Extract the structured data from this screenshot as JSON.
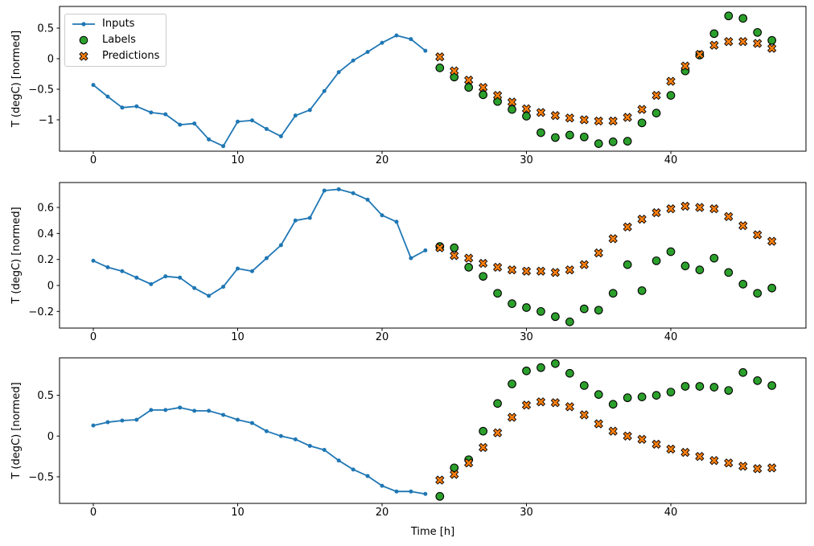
{
  "figure": {
    "xlabel": "Time [h]",
    "ylabel": "T (degC) [normed]"
  },
  "colors": {
    "inputs": "#1f77b4",
    "labels": "#2ca02c",
    "predictions": "#ff7f0e",
    "marker_edge": "#000000",
    "axes_edge": "#000000",
    "legend_border": "#cccccc",
    "background": "#ffffff"
  },
  "legend": {
    "position": "upper-left",
    "items": [
      {
        "label": "Inputs",
        "marker": "line-dot-icon"
      },
      {
        "label": "Labels",
        "marker": "circle-icon"
      },
      {
        "label": "Predictions",
        "marker": "x-icon"
      }
    ]
  },
  "chart_data": [
    {
      "type": "line",
      "title": "",
      "xlabel": "",
      "ylabel": "T (degC) [normed]",
      "xlim": [
        -2.34,
        49.36
      ],
      "ylim": [
        -1.513,
        0.855
      ],
      "xticks": [
        0,
        10,
        20,
        30,
        40
      ],
      "yticks": [
        0.5,
        0.0,
        -0.5,
        -1.0
      ],
      "grid": false,
      "series": [
        {
          "name": "Inputs",
          "kind": "line",
          "marker": "dot",
          "x": [
            0,
            1,
            2,
            3,
            4,
            5,
            6,
            7,
            8,
            9,
            10,
            11,
            12,
            13,
            14,
            15,
            16,
            17,
            18,
            19,
            20,
            21,
            22,
            23
          ],
          "values": [
            -0.43,
            -0.62,
            -0.8,
            -0.78,
            -0.88,
            -0.91,
            -1.08,
            -1.06,
            -1.32,
            -1.43,
            -1.03,
            -1.01,
            -1.15,
            -1.27,
            -0.93,
            -0.84,
            -0.53,
            -0.22,
            -0.03,
            0.11,
            0.26,
            0.38,
            0.32,
            0.13
          ]
        },
        {
          "name": "Labels",
          "kind": "scatter",
          "marker": "circle",
          "x": [
            24,
            25,
            26,
            27,
            28,
            29,
            30,
            31,
            32,
            33,
            34,
            35,
            36,
            37,
            38,
            39,
            40,
            41,
            42,
            43,
            44,
            45,
            46,
            47
          ],
          "values": [
            -0.15,
            -0.3,
            -0.47,
            -0.59,
            -0.7,
            -0.83,
            -0.94,
            -1.21,
            -1.29,
            -1.25,
            -1.28,
            -1.39,
            -1.36,
            -1.35,
            -1.05,
            -0.89,
            -0.6,
            -0.2,
            0.06,
            0.41,
            0.7,
            0.66,
            0.43,
            0.3
          ]
        },
        {
          "name": "Predictions",
          "kind": "scatter",
          "marker": "X",
          "x": [
            24,
            25,
            26,
            27,
            28,
            29,
            30,
            31,
            32,
            33,
            34,
            35,
            36,
            37,
            38,
            39,
            40,
            41,
            42,
            43,
            44,
            45,
            46,
            47
          ],
          "values": [
            0.03,
            -0.2,
            -0.35,
            -0.47,
            -0.6,
            -0.71,
            -0.82,
            -0.88,
            -0.93,
            -0.97,
            -1.0,
            -1.02,
            -1.02,
            -0.96,
            -0.83,
            -0.6,
            -0.37,
            -0.12,
            0.07,
            0.22,
            0.28,
            0.28,
            0.25,
            0.17
          ]
        }
      ]
    },
    {
      "type": "line",
      "title": "",
      "xlabel": "",
      "ylabel": "T (degC) [normed]",
      "xlim": [
        -2.34,
        49.36
      ],
      "ylim": [
        -0.328,
        0.792
      ],
      "xticks": [
        0,
        10,
        20,
        30,
        40
      ],
      "yticks": [
        0.6,
        0.4,
        0.2,
        0.0,
        -0.2
      ],
      "grid": false,
      "series": [
        {
          "name": "Inputs",
          "kind": "line",
          "marker": "dot",
          "x": [
            0,
            1,
            2,
            3,
            4,
            5,
            6,
            7,
            8,
            9,
            10,
            11,
            12,
            13,
            14,
            15,
            16,
            17,
            18,
            19,
            20,
            21,
            22,
            23
          ],
          "values": [
            0.19,
            0.14,
            0.11,
            0.06,
            0.01,
            0.07,
            0.06,
            -0.02,
            -0.08,
            -0.01,
            0.13,
            0.11,
            0.21,
            0.31,
            0.5,
            0.52,
            0.73,
            0.74,
            0.71,
            0.66,
            0.54,
            0.49,
            0.21,
            0.27
          ]
        },
        {
          "name": "Labels",
          "kind": "scatter",
          "marker": "circle",
          "x": [
            24,
            25,
            26,
            27,
            28,
            29,
            30,
            31,
            32,
            33,
            34,
            35,
            36,
            37,
            38,
            39,
            40,
            41,
            42,
            43,
            44,
            45,
            46,
            47
          ],
          "values": [
            0.3,
            0.29,
            0.14,
            0.07,
            -0.06,
            -0.14,
            -0.17,
            -0.2,
            -0.24,
            -0.28,
            -0.18,
            -0.19,
            -0.06,
            0.16,
            -0.04,
            0.19,
            0.26,
            0.15,
            0.12,
            0.21,
            0.1,
            0.01,
            -0.06,
            -0.02
          ]
        },
        {
          "name": "Predictions",
          "kind": "scatter",
          "marker": "X",
          "x": [
            24,
            25,
            26,
            27,
            28,
            29,
            30,
            31,
            32,
            33,
            34,
            35,
            36,
            37,
            38,
            39,
            40,
            41,
            42,
            43,
            44,
            45,
            46,
            47
          ],
          "values": [
            0.29,
            0.23,
            0.21,
            0.17,
            0.14,
            0.12,
            0.11,
            0.11,
            0.1,
            0.12,
            0.16,
            0.25,
            0.36,
            0.45,
            0.51,
            0.56,
            0.59,
            0.61,
            0.6,
            0.59,
            0.53,
            0.46,
            0.39,
            0.34
          ]
        }
      ]
    },
    {
      "type": "line",
      "title": "",
      "xlabel": "Time [h]",
      "ylabel": "T (degC) [normed]",
      "xlim": [
        -2.34,
        49.36
      ],
      "ylim": [
        -0.826,
        0.96
      ],
      "xticks": [
        0,
        10,
        20,
        30,
        40
      ],
      "yticks": [
        0.5,
        0.0,
        -0.5
      ],
      "grid": false,
      "series": [
        {
          "name": "Inputs",
          "kind": "line",
          "marker": "dot",
          "x": [
            0,
            1,
            2,
            3,
            4,
            5,
            6,
            7,
            8,
            9,
            10,
            11,
            12,
            13,
            14,
            15,
            16,
            17,
            18,
            19,
            20,
            21,
            22,
            23
          ],
          "values": [
            0.13,
            0.17,
            0.19,
            0.2,
            0.32,
            0.32,
            0.35,
            0.31,
            0.31,
            0.26,
            0.2,
            0.16,
            0.06,
            0.0,
            -0.04,
            -0.12,
            -0.17,
            -0.3,
            -0.41,
            -0.49,
            -0.61,
            -0.68,
            -0.68,
            -0.71
          ]
        },
        {
          "name": "Labels",
          "kind": "scatter",
          "marker": "circle",
          "x": [
            24,
            25,
            26,
            27,
            28,
            29,
            30,
            31,
            32,
            33,
            34,
            35,
            36,
            37,
            38,
            39,
            40,
            41,
            42,
            43,
            44,
            45,
            46,
            47
          ],
          "values": [
            -0.74,
            -0.39,
            -0.29,
            0.06,
            0.4,
            0.64,
            0.8,
            0.84,
            0.89,
            0.77,
            0.62,
            0.51,
            0.39,
            0.47,
            0.48,
            0.5,
            0.54,
            0.61,
            0.61,
            0.6,
            0.56,
            0.78,
            0.68,
            0.62
          ]
        },
        {
          "name": "Predictions",
          "kind": "scatter",
          "marker": "X",
          "x": [
            24,
            25,
            26,
            27,
            28,
            29,
            30,
            31,
            32,
            33,
            34,
            35,
            36,
            37,
            38,
            39,
            40,
            41,
            42,
            43,
            44,
            45,
            46,
            47
          ],
          "values": [
            -0.54,
            -0.47,
            -0.33,
            -0.14,
            0.04,
            0.23,
            0.38,
            0.42,
            0.41,
            0.36,
            0.26,
            0.15,
            0.06,
            0.0,
            -0.04,
            -0.1,
            -0.16,
            -0.2,
            -0.25,
            -0.3,
            -0.33,
            -0.37,
            -0.4,
            -0.39
          ]
        }
      ]
    }
  ]
}
